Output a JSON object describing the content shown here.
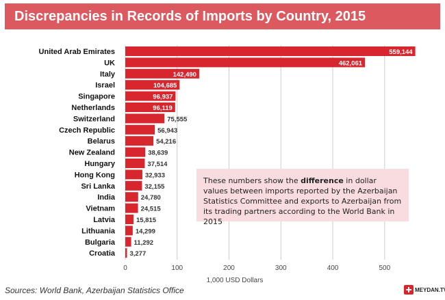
{
  "title": "Discrepancies in Records of Imports by Country, 2015",
  "note": {
    "before": "These numbers show the ",
    "bold": "difference",
    "after": " in dollar values between imports reported by the Azerbaijan Statistics Committee and exports to Azerbaijan from its trading partners according to the World Bank in 2015"
  },
  "source": "Sources: World Bank, Azerbaijan Statistics Office",
  "logo_text": "MEYDAN.TV",
  "colors": {
    "bar": "#d8262e",
    "title_bg": "#dc5a5f",
    "note_bg": "#f9dcdf",
    "grid": "#cccccc"
  },
  "chart_data": {
    "type": "bar",
    "orientation": "horizontal",
    "title": "Discrepancies in Records of Imports by Country, 2015",
    "xlabel": "1,000 USD Dollars",
    "ylabel": "",
    "xlim": [
      0,
      550
    ],
    "xticks": [
      0,
      100,
      200,
      300,
      400,
      500
    ],
    "grid": true,
    "categories": [
      "United Arab Emirates",
      "UK",
      "Italy",
      "Israel",
      "Singapore",
      "Netherlands",
      "Switzerland",
      "Czech Republic",
      "Belarus",
      "New Zealand",
      "Hungary",
      "Hong Kong",
      "Sri Lanka",
      "India",
      "Vietnam",
      "Latvia",
      "Lithuania",
      "Bulgaria",
      "Croatia"
    ],
    "values": [
      559.144,
      462.061,
      142.49,
      104.685,
      96.937,
      96.119,
      75.555,
      56.943,
      54.216,
      38.639,
      37.514,
      32.933,
      32.155,
      24.78,
      24.515,
      15.815,
      14.299,
      11.292,
      3.277
    ],
    "value_labels": [
      "559,144",
      "462,061",
      "142,490",
      "104,685",
      "96,937",
      "96,119",
      "75,555",
      "56,943",
      "54,216",
      "38,639",
      "37,514",
      "32,933",
      "32,155",
      "24,780",
      "24,515",
      "15,815",
      "14,299",
      "11,292",
      "3,277"
    ]
  }
}
